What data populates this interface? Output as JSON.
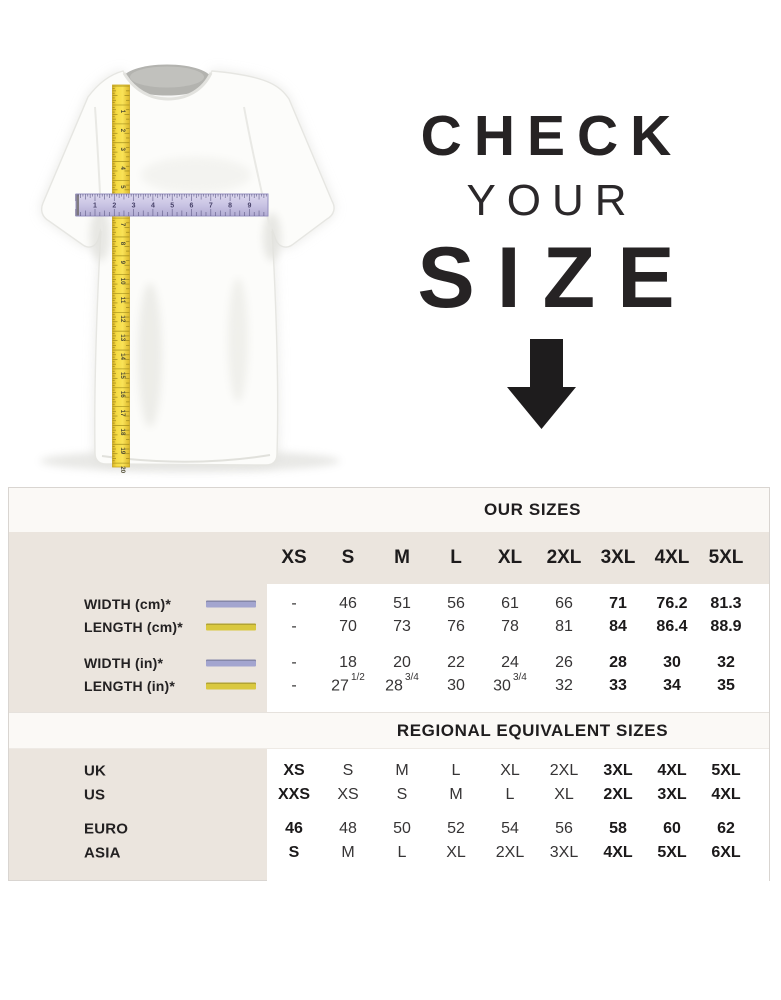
{
  "hero": {
    "line1": "CHECK",
    "line2": "YOUR",
    "line3": "SIZE"
  },
  "figure": {
    "vertical_tape_numbers": [
      1,
      2,
      3,
      4,
      5,
      6,
      7,
      8,
      9,
      10,
      11,
      12,
      13,
      14,
      15,
      16,
      17,
      18,
      19,
      20
    ],
    "horizontal_ruler_numbers": [
      1,
      2,
      3,
      4,
      5,
      6,
      7,
      8,
      9
    ],
    "tape_color": "#f3d93e",
    "ruler_color": "#c9c4e3"
  },
  "size_table": {
    "our_sizes_title": "OUR SIZES",
    "size_headers": [
      "XS",
      "S",
      "M",
      "L",
      "XL",
      "2XL",
      "3XL",
      "4XL",
      "5XL"
    ],
    "swatch_colors": {
      "lavender": "#a3a5cf",
      "yellow": "#d9c83f"
    },
    "measurement_rows": [
      {
        "label": "WIDTH (cm)*",
        "swatch": "lavender",
        "group": 1,
        "values": [
          "-",
          "46",
          "51",
          "56",
          "61",
          "66",
          "71",
          "76.2",
          "81.3"
        ],
        "bold_indices": [
          6,
          7,
          8
        ]
      },
      {
        "label": "LENGTH (cm)*",
        "swatch": "yellow",
        "group": 1,
        "values": [
          "-",
          "70",
          "73",
          "76",
          "78",
          "81",
          "84",
          "86.4",
          "88.9"
        ],
        "bold_indices": [
          6,
          7,
          8
        ]
      },
      {
        "label": "WIDTH (in)*",
        "swatch": "lavender",
        "group": 2,
        "values": [
          "-",
          "18",
          "20",
          "22",
          "24",
          "26",
          "28",
          "30",
          "32"
        ],
        "bold_indices": [
          6,
          7,
          8
        ]
      },
      {
        "label": "LENGTH (in)*",
        "swatch": "yellow",
        "group": 2,
        "values": [
          "-",
          {
            "v": "27",
            "sup": "1/2"
          },
          {
            "v": "28",
            "sup": "3/4"
          },
          "30",
          {
            "v": "30",
            "sup": "3/4"
          },
          "32",
          "33",
          "34",
          "35"
        ],
        "bold_indices": [
          6,
          7,
          8
        ]
      }
    ],
    "regional_title": "REGIONAL EQUIVALENT SIZES",
    "regional_rows": [
      {
        "label": "UK",
        "values": [
          "XS",
          "S",
          "M",
          "L",
          "XL",
          "2XL",
          "3XL",
          "4XL",
          "5XL"
        ],
        "bold_indices": [
          0,
          6,
          7,
          8
        ]
      },
      {
        "label": "US",
        "values": [
          "XXS",
          "XS",
          "S",
          "M",
          "L",
          "XL",
          "2XL",
          "3XL",
          "4XL"
        ],
        "bold_indices": [
          0,
          6,
          7,
          8
        ]
      },
      {
        "label": "EURO",
        "values": [
          "46",
          "48",
          "50",
          "52",
          "54",
          "56",
          "58",
          "60",
          "62"
        ],
        "bold_indices": [
          0,
          6,
          7,
          8
        ]
      },
      {
        "label": "ASIA",
        "values": [
          "S",
          "M",
          "L",
          "XL",
          "2XL",
          "3XL",
          "4XL",
          "5XL",
          "6XL"
        ],
        "bold_indices": [
          0,
          6,
          7,
          8
        ]
      }
    ]
  },
  "colors": {
    "beige": "#ebe5de",
    "cream": "#fbf9f6",
    "panel_white": "#ffffff",
    "border": "#d9d5d1",
    "text_dark": "#1f1d1e",
    "arrow_black": "#1e1c1d"
  }
}
